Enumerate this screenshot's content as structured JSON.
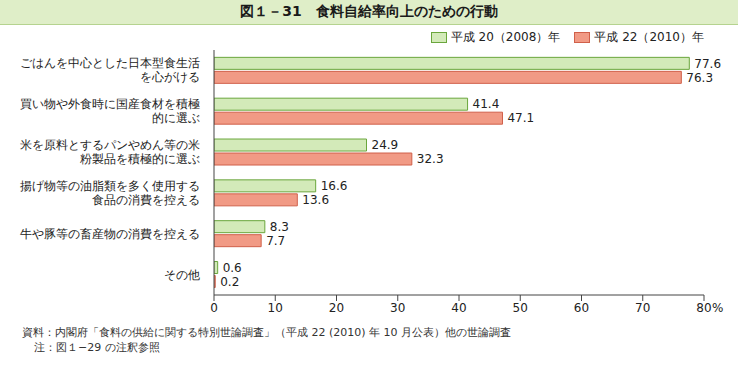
{
  "chart_data": {
    "type": "bar",
    "title": "図１－31　食料自給率向上のための行動",
    "orientation": "horizontal",
    "categories": [
      "ごはんを中心とした日本型食生活を心がける",
      "買い物や外食時に国産食材を積極的に選ぶ",
      "米を原料とするパンやめん等の米粉製品を積極的に選ぶ",
      "揚げ物等の油脂類を多く使用する食品の消費を控える",
      "牛や豚等の畜産物の消費を控える",
      "その他"
    ],
    "series": [
      {
        "name": "平成 20（2008）年",
        "color": "#d3eab9",
        "values": [
          77.6,
          41.4,
          24.9,
          16.6,
          8.3,
          0.6
        ]
      },
      {
        "name": "平成 22（2010）年",
        "color": "#f19a85",
        "values": [
          76.3,
          47.1,
          32.3,
          13.6,
          7.7,
          0.2
        ]
      }
    ],
    "x_label": "%",
    "xlim": [
      0,
      80
    ],
    "xticks": [
      0,
      10,
      20,
      30,
      40,
      50,
      60,
      70,
      80
    ],
    "grid": false,
    "data_labels": true,
    "legend": "top-right",
    "source": "資料：内閣府「食料の供給に関する特別世論調査」（平成 22 (2010) 年 10 月公表）他の世論調査",
    "note": "注：図１−29 の注釈参照"
  }
}
